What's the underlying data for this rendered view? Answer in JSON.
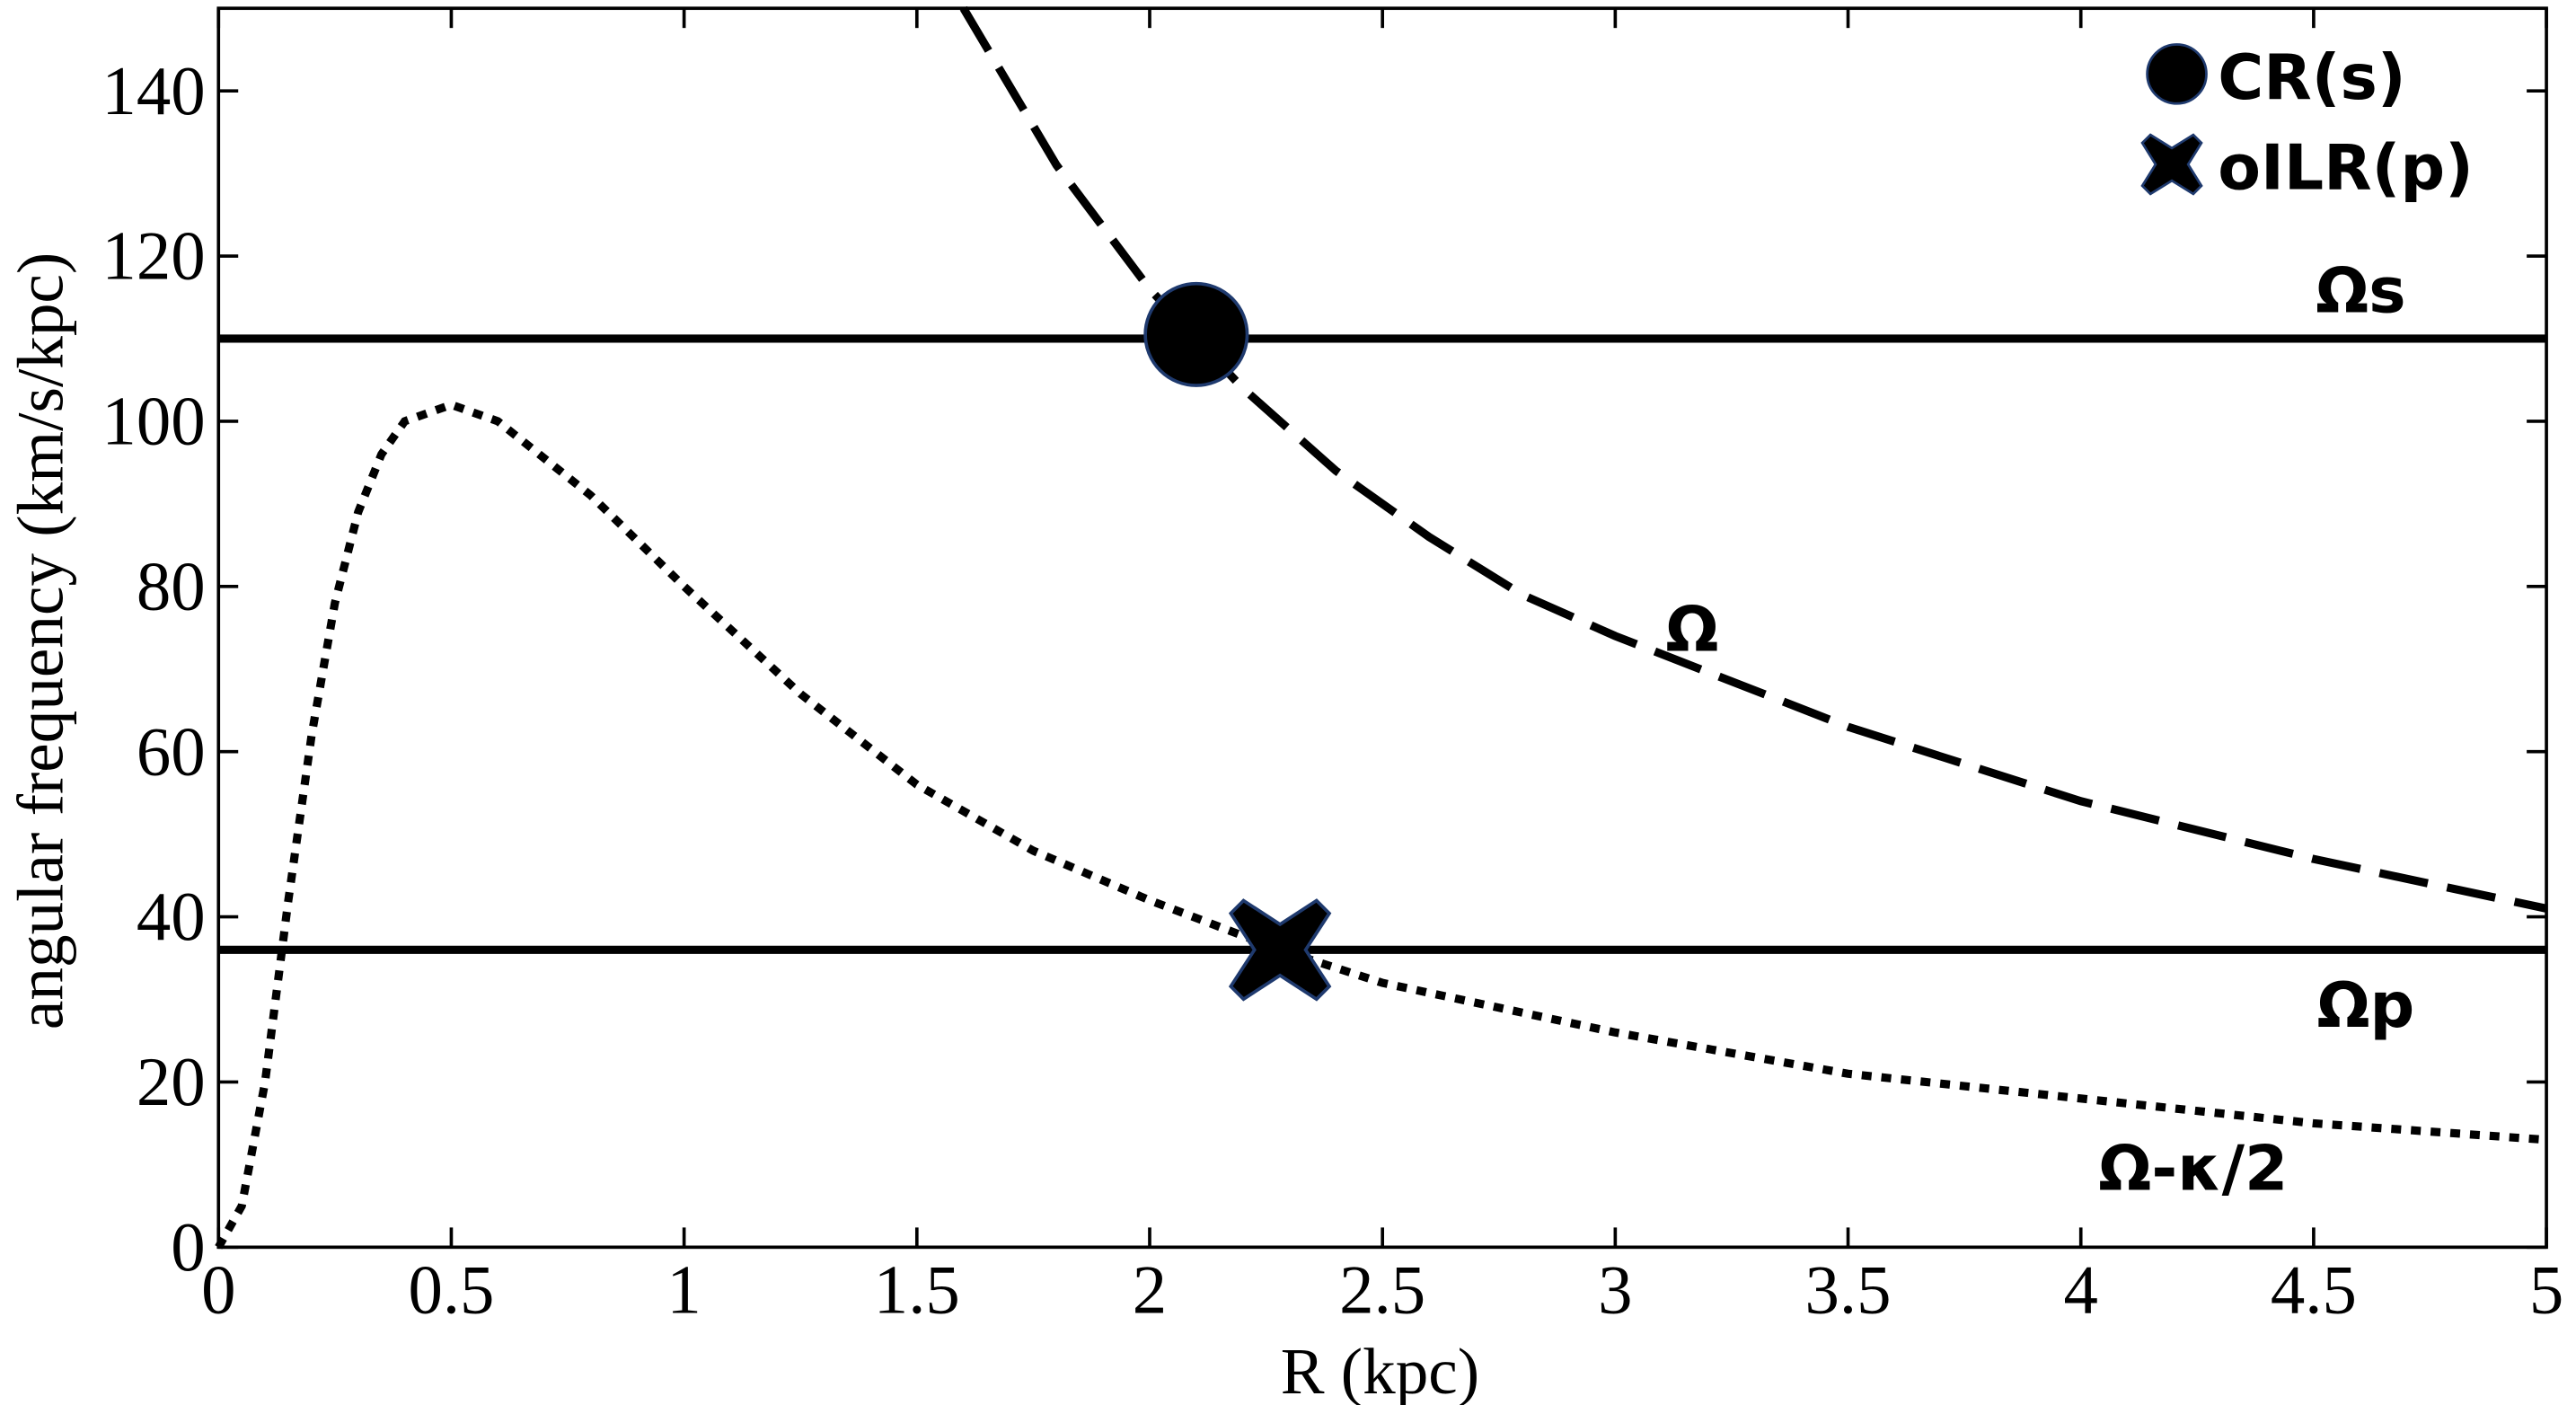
{
  "chart_data": {
    "type": "line",
    "xlabel": "R (kpc)",
    "ylabel": "angular frequency (km/s/kpc)",
    "xlim": [
      0,
      5
    ],
    "ylim": [
      0,
      150
    ],
    "xticks": [
      0,
      0.5,
      1,
      1.5,
      2,
      2.5,
      3,
      3.5,
      4,
      4.5,
      5
    ],
    "yticks": [
      0,
      20,
      40,
      60,
      80,
      100,
      120,
      140
    ],
    "legend": "upper right",
    "series": [
      {
        "name": "Ω",
        "color": "#000000",
        "style": "dashed",
        "x": [
          1.6,
          1.8,
          2.0,
          2.2,
          2.4,
          2.6,
          2.8,
          3.0,
          3.5,
          4.0,
          4.5,
          5.0
        ],
        "values": [
          150,
          131,
          116,
          104,
          94,
          86,
          79,
          74,
          63,
          54,
          47,
          41
        ]
      },
      {
        "name": "Ω-κ/2",
        "color": "#000000",
        "style": "dotted",
        "x": [
          0,
          0.05,
          0.1,
          0.15,
          0.2,
          0.25,
          0.3,
          0.35,
          0.4,
          0.5,
          0.6,
          0.8,
          1.0,
          1.25,
          1.5,
          1.75,
          2.0,
          2.28,
          2.5,
          3.0,
          3.5,
          4.0,
          4.5,
          5.0
        ],
        "values": [
          0,
          5,
          20,
          42,
          62,
          78,
          89,
          96,
          100,
          102,
          100,
          91,
          80,
          67,
          56,
          48,
          42,
          36,
          32,
          26,
          21,
          18,
          15,
          13
        ]
      },
      {
        "name": "Ωs",
        "color": "#000000",
        "style": "solid",
        "x": [
          0,
          5
        ],
        "values": [
          110,
          110
        ]
      },
      {
        "name": "Ωp",
        "color": "#000000",
        "style": "solid",
        "x": [
          0,
          5
        ],
        "values": [
          36,
          36
        ]
      }
    ],
    "markers": [
      {
        "name": "CR(s)",
        "marker": "circle",
        "color": "#000000",
        "x": [
          2.1
        ],
        "values": [
          110.5
        ]
      },
      {
        "name": "oILR(p)",
        "marker": "x",
        "color": "#000000",
        "x": [
          2.28
        ],
        "values": [
          36
        ]
      }
    ]
  }
}
